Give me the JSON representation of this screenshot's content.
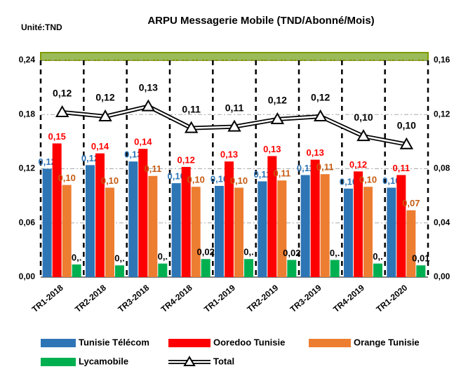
{
  "chart_data": {
    "type": "bar",
    "title": "ARPU Messagerie Mobile (TND/Abonné/Mois)",
    "subtitle": "Unité:TND",
    "categories": [
      "TR1-2018",
      "TR2-2018",
      "TR3-2018",
      "TR4-2018",
      "TR1-2019",
      "TR2-2019",
      "TR3-2019",
      "TR4-2019",
      "TR1-2020"
    ],
    "series": [
      {
        "name": "Tunisie Télécom",
        "color": "#2e75b6",
        "label_color": "#2e75b6",
        "values": [
          0.12,
          0.124,
          0.128,
          0.104,
          0.101,
          0.106,
          0.113,
          0.098,
          0.099
        ],
        "value_labels": [
          "0,12",
          "0,12",
          "0,13",
          "0,10",
          "0,10",
          "0,11",
          "0,11",
          "0,10",
          "0,10"
        ]
      },
      {
        "name": "Ooredoo Tunisie",
        "color": "#ff0000",
        "label_color": "#ff0000",
        "values": [
          0.148,
          0.137,
          0.142,
          0.122,
          0.128,
          0.134,
          0.13,
          0.117,
          0.113
        ],
        "value_labels": [
          "0,15",
          "0,14",
          "0,14",
          "0,12",
          "0,13",
          "0,13",
          "0,13",
          "0,12",
          "0,11"
        ]
      },
      {
        "name": "Orange Tunisie",
        "color": "#ed7d31",
        "label_color": "#c55a11",
        "values": [
          0.102,
          0.099,
          0.112,
          0.1,
          0.099,
          0.107,
          0.114,
          0.1,
          0.074
        ],
        "value_labels": [
          "0,10",
          "0,10",
          "0,11",
          "0,10",
          "0,10",
          "0,11",
          "0,11",
          "0,10",
          "0,07"
        ]
      },
      {
        "name": "Lycamobile",
        "color": "#00b050",
        "label_color": "#000000",
        "values": [
          0.014,
          0.013,
          0.015,
          0.02,
          0.02,
          0.019,
          0.019,
          0.015,
          0.013
        ],
        "value_labels": [
          "0,.",
          "0,.",
          "0,.",
          "0,02",
          "0,.",
          "0,02",
          "0,.",
          "0,.",
          "0,01"
        ]
      },
      {
        "name": "Total",
        "color": "#000000",
        "label_color": "#000000",
        "axis": "y2",
        "type": "line",
        "values": [
          0.1217,
          0.1186,
          0.126,
          0.11,
          0.111,
          0.1165,
          0.1186,
          0.104,
          0.098
        ],
        "value_labels": [
          "0,12",
          "0,12",
          "0,13",
          "0,11",
          "0,11",
          "0,12",
          "0,12",
          "0,10",
          "0,10"
        ]
      }
    ],
    "ylim": [
      0,
      0.24
    ],
    "yticks": [
      {
        "value": 0,
        "label": "0,00"
      },
      {
        "value": 0.06,
        "label": "0,06"
      },
      {
        "value": 0.12,
        "label": "0,12"
      },
      {
        "value": 0.18,
        "label": "0,18"
      },
      {
        "value": 0.24,
        "label": "0,24"
      }
    ],
    "y2lim": [
      0,
      0.16
    ],
    "y2ticks": [
      {
        "value": 0,
        "label": "0,00"
      },
      {
        "value": 0.04,
        "label": "0,04"
      },
      {
        "value": 0.08,
        "label": "0,08"
      },
      {
        "value": 0.12,
        "label": "0,12"
      },
      {
        "value": 0.16,
        "label": "0,16"
      }
    ],
    "grid": true,
    "legend": "bottom"
  }
}
